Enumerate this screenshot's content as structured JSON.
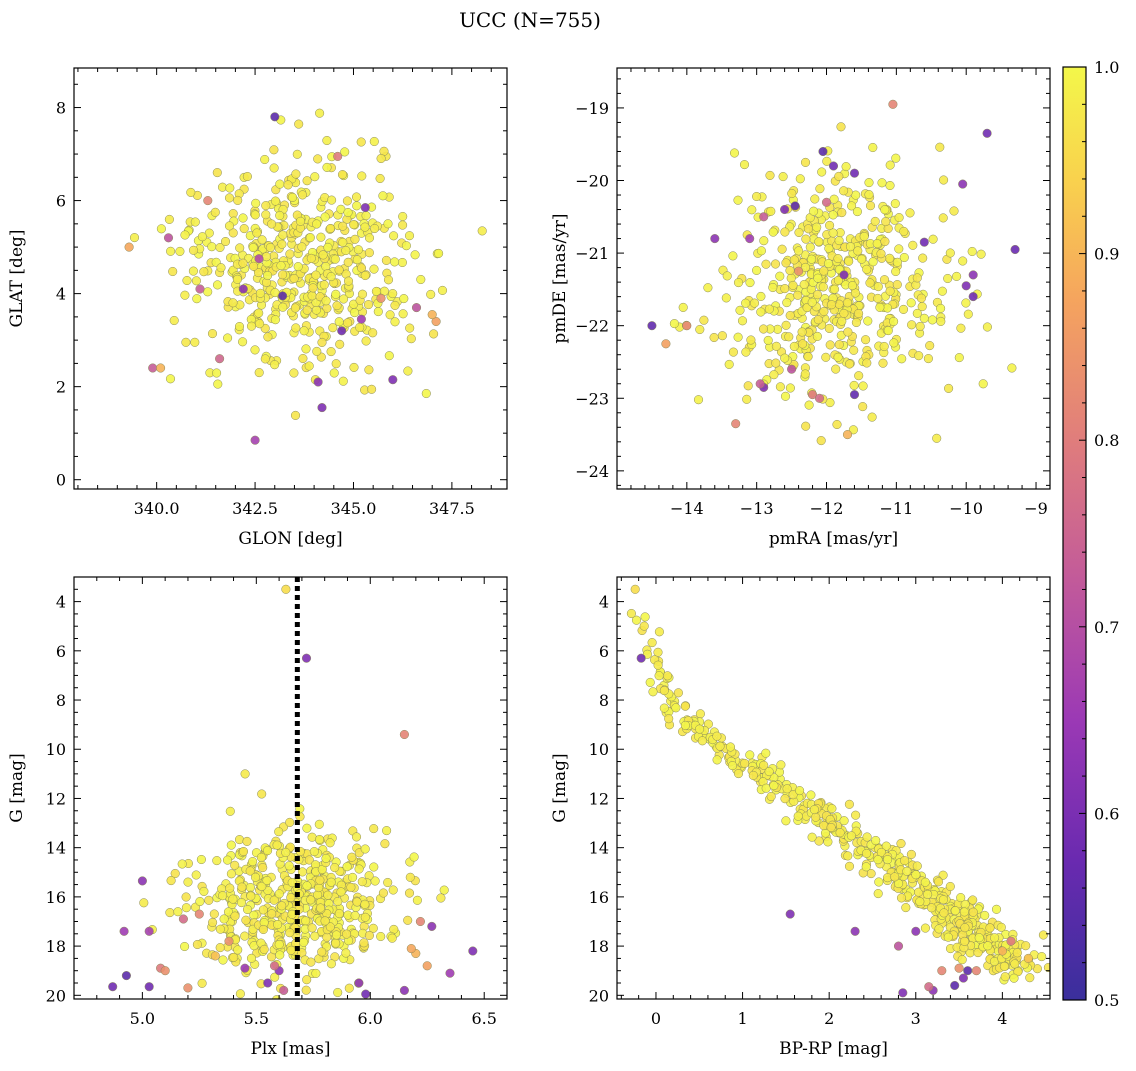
{
  "figure": {
    "title": "UCC (N=755)"
  },
  "colors": {
    "colormap": [
      "#3a2f9c",
      "#6a2ab0",
      "#9b39b5",
      "#c25a9a",
      "#e07d7c",
      "#f5a45e",
      "#f9d24d",
      "#f3f74a"
    ],
    "marker_edge": "#8a8a5a",
    "vline": "#000000"
  },
  "colorbar": {
    "min": 0.5,
    "max": 1.0,
    "ticks": [
      0.5,
      0.6,
      0.7,
      0.8,
      0.9,
      1.0
    ],
    "tick_labels": [
      "0.5",
      "0.6",
      "0.7",
      "0.8",
      "0.9",
      "1.0"
    ]
  },
  "chart_data": [
    {
      "id": "glon_glat",
      "type": "scatter",
      "xlabel": "GLON [deg]",
      "ylabel": "GLAT [deg]",
      "xlim": [
        337.9,
        348.9
      ],
      "ylim": [
        -0.2,
        8.85
      ],
      "xticks": [
        340.0,
        342.5,
        345.0,
        347.5
      ],
      "xtick_labels": [
        "340.0",
        "342.5",
        "345.0",
        "347.5"
      ],
      "yticks": [
        0,
        2,
        4,
        6,
        8
      ],
      "ytick_labels": [
        "0",
        "2",
        "4",
        "6",
        "8"
      ],
      "invert_y": false,
      "cluster": {
        "center": [
          343.6,
          4.6
        ],
        "sd": [
          1.4,
          1.05
        ],
        "n": 520,
        "seed": 11
      },
      "outliers": [
        [
          343.0,
          7.8,
          0.55
        ],
        [
          344.6,
          6.95,
          0.78
        ],
        [
          339.3,
          5.0,
          0.86
        ],
        [
          340.3,
          5.2,
          0.7
        ],
        [
          339.9,
          2.4,
          0.72
        ],
        [
          340.1,
          2.4,
          0.88
        ],
        [
          342.5,
          0.85,
          0.66
        ],
        [
          344.2,
          1.55,
          0.6
        ],
        [
          344.1,
          2.1,
          0.62
        ],
        [
          344.7,
          3.2,
          0.58
        ],
        [
          345.2,
          3.45,
          0.65
        ],
        [
          346.0,
          2.15,
          0.6
        ],
        [
          346.6,
          3.7,
          0.7
        ],
        [
          347.1,
          3.4,
          0.85
        ],
        [
          342.2,
          4.1,
          0.62
        ],
        [
          341.6,
          2.6,
          0.74
        ],
        [
          342.6,
          4.75,
          0.68
        ],
        [
          345.3,
          5.85,
          0.6
        ],
        [
          341.1,
          4.1,
          0.72
        ],
        [
          343.2,
          3.95,
          0.55
        ],
        [
          341.3,
          6.0,
          0.8
        ],
        [
          347.0,
          3.55,
          0.88
        ],
        [
          345.7,
          3.9,
          0.82
        ]
      ]
    },
    {
      "id": "pm",
      "type": "scatter",
      "xlabel": "pmRA [mas/yr]",
      "ylabel": "pmDE [mas/yr]",
      "xlim": [
        -15.0,
        -8.8
      ],
      "ylim": [
        -24.25,
        -18.45
      ],
      "xticks": [
        -14,
        -13,
        -12,
        -11,
        -10,
        -9
      ],
      "xtick_labels": [
        "−14",
        "−13",
        "−12",
        "−11",
        "−10",
        "−9"
      ],
      "yticks": [
        -24,
        -23,
        -22,
        -21,
        -20,
        -19
      ],
      "ytick_labels": [
        "−24",
        "−23",
        "−22",
        "−21",
        "−20",
        "−19"
      ],
      "invert_y": false,
      "cluster": {
        "center": [
          -11.9,
          -21.45
        ],
        "sd": [
          0.75,
          0.7
        ],
        "n": 520,
        "seed": 23
      },
      "outliers": [
        [
          -11.05,
          -18.95,
          0.8
        ],
        [
          -9.7,
          -19.35,
          0.58
        ],
        [
          -9.3,
          -20.95,
          0.57
        ],
        [
          -10.05,
          -20.05,
          0.62
        ],
        [
          -9.9,
          -21.3,
          0.62
        ],
        [
          -10.0,
          -21.45,
          0.6
        ],
        [
          -9.9,
          -21.6,
          0.58
        ],
        [
          -14.5,
          -22.0,
          0.56
        ],
        [
          -14.3,
          -22.25,
          0.85
        ],
        [
          -13.3,
          -23.35,
          0.8
        ],
        [
          -12.9,
          -22.85,
          0.6
        ],
        [
          -12.2,
          -22.95,
          0.78
        ],
        [
          -12.1,
          -23.0,
          0.75
        ],
        [
          -11.6,
          -22.95,
          0.56
        ],
        [
          -11.7,
          -23.5,
          0.88
        ],
        [
          -11.9,
          -19.8,
          0.58
        ],
        [
          -11.6,
          -19.9,
          0.58
        ],
        [
          -12.05,
          -19.6,
          0.55
        ],
        [
          -12.6,
          -20.4,
          0.6
        ],
        [
          -12.45,
          -20.35,
          0.55
        ],
        [
          -12.9,
          -20.5,
          0.72
        ],
        [
          -12.4,
          -21.25,
          0.82
        ],
        [
          -11.75,
          -21.3,
          0.6
        ],
        [
          -13.1,
          -20.8,
          0.65
        ],
        [
          -13.6,
          -20.8,
          0.62
        ],
        [
          -14.0,
          -22.0,
          0.8
        ],
        [
          -12.5,
          -22.6,
          0.7
        ],
        [
          -12.0,
          -20.3,
          0.75
        ],
        [
          -10.6,
          -20.85,
          0.58
        ],
        [
          -12.95,
          -22.8,
          0.72
        ]
      ]
    },
    {
      "id": "plx_g",
      "type": "scatter",
      "xlabel": "Plx [mas]",
      "ylabel": "G [mag]",
      "xlim": [
        4.7,
        6.6
      ],
      "ylim": [
        20.15,
        3.0
      ],
      "xticks": [
        5.0,
        5.5,
        6.0,
        6.5
      ],
      "xtick_labels": [
        "5.0",
        "5.5",
        "6.0",
        "6.5"
      ],
      "yticks": [
        4,
        6,
        8,
        10,
        12,
        14,
        16,
        18,
        20
      ],
      "ytick_labels": [
        "4",
        "6",
        "8",
        "10",
        "12",
        "14",
        "16",
        "18",
        "20"
      ],
      "invert_y": true,
      "vline": {
        "x": 5.68,
        "style": "dotted"
      },
      "cluster": {
        "center": [
          5.68,
          16.3
        ],
        "sd": [
          0.23,
          1.6
        ],
        "n": 520,
        "seed": 37
      },
      "outliers": [
        [
          5.63,
          3.5,
          0.95
        ],
        [
          5.72,
          6.3,
          0.6
        ],
        [
          6.15,
          9.4,
          0.8
        ],
        [
          4.87,
          19.65,
          0.58
        ],
        [
          4.93,
          19.2,
          0.55
        ],
        [
          5.03,
          19.65,
          0.58
        ],
        [
          5.0,
          15.35,
          0.62
        ],
        [
          4.92,
          17.4,
          0.65
        ],
        [
          5.03,
          17.4,
          0.66
        ],
        [
          5.08,
          18.9,
          0.78
        ],
        [
          5.1,
          19.0,
          0.82
        ],
        [
          5.2,
          19.7,
          0.82
        ],
        [
          5.18,
          16.9,
          0.75
        ],
        [
          5.25,
          16.7,
          0.8
        ],
        [
          5.45,
          18.9,
          0.64
        ],
        [
          5.55,
          19.5,
          0.6
        ],
        [
          5.6,
          19.0,
          0.62
        ],
        [
          5.62,
          19.8,
          0.72
        ],
        [
          5.95,
          19.5,
          0.62
        ],
        [
          5.98,
          19.95,
          0.58
        ],
        [
          6.15,
          19.8,
          0.62
        ],
        [
          6.2,
          18.3,
          0.88
        ],
        [
          6.25,
          18.8,
          0.85
        ],
        [
          6.27,
          17.2,
          0.62
        ],
        [
          6.45,
          18.2,
          0.6
        ],
        [
          6.35,
          19.1,
          0.65
        ],
        [
          6.22,
          17.0,
          0.8
        ],
        [
          6.18,
          18.1,
          0.86
        ],
        [
          5.58,
          18.8,
          0.75
        ],
        [
          5.32,
          18.4,
          0.9
        ],
        [
          5.38,
          17.8,
          0.82
        ]
      ]
    },
    {
      "id": "cmd",
      "type": "scatter",
      "xlabel": "BP-RP [mag]",
      "ylabel": "G [mag]",
      "xlim": [
        -0.45,
        4.55
      ],
      "ylim": [
        20.15,
        3.0
      ],
      "xticks": [
        0,
        1,
        2,
        3,
        4
      ],
      "xtick_labels": [
        "0",
        "1",
        "2",
        "3",
        "4"
      ],
      "yticks": [
        4,
        6,
        8,
        10,
        12,
        14,
        16,
        18,
        20
      ],
      "ytick_labels": [
        "4",
        "6",
        "8",
        "10",
        "12",
        "14",
        "16",
        "18",
        "20"
      ],
      "invert_y": true,
      "sequence": [
        [
          -0.25,
          3.5
        ],
        [
          -0.1,
          5.6
        ],
        [
          0.1,
          7.2
        ],
        [
          0.3,
          8.6
        ],
        [
          0.6,
          9.4
        ],
        [
          1.0,
          10.4
        ],
        [
          1.4,
          11.5
        ],
        [
          1.8,
          12.5
        ],
        [
          2.2,
          13.5
        ],
        [
          2.6,
          14.4
        ],
        [
          3.0,
          15.4
        ],
        [
          3.3,
          16.3
        ],
        [
          3.6,
          17.2
        ],
        [
          3.9,
          18.1
        ],
        [
          4.2,
          18.8
        ]
      ],
      "n": 540,
      "seed": 51,
      "outliers": [
        [
          -0.17,
          6.3,
          0.58
        ],
        [
          1.55,
          16.7,
          0.6
        ],
        [
          2.3,
          17.4,
          0.62
        ],
        [
          2.85,
          19.9,
          0.6
        ],
        [
          3.2,
          19.8,
          0.62
        ],
        [
          3.15,
          19.65,
          0.75
        ],
        [
          3.45,
          19.6,
          0.55
        ],
        [
          3.55,
          19.3,
          0.6
        ],
        [
          3.6,
          19.0,
          0.55
        ],
        [
          3.0,
          17.4,
          0.62
        ],
        [
          2.8,
          18.0,
          0.7
        ],
        [
          3.5,
          18.9,
          0.82
        ],
        [
          3.7,
          19.0,
          0.8
        ],
        [
          4.0,
          18.2,
          0.88
        ],
        [
          4.1,
          17.8,
          0.78
        ],
        [
          4.3,
          18.5,
          0.9
        ],
        [
          3.3,
          19.0,
          0.8
        ],
        [
          -0.24,
          3.5,
          0.95
        ]
      ]
    }
  ]
}
